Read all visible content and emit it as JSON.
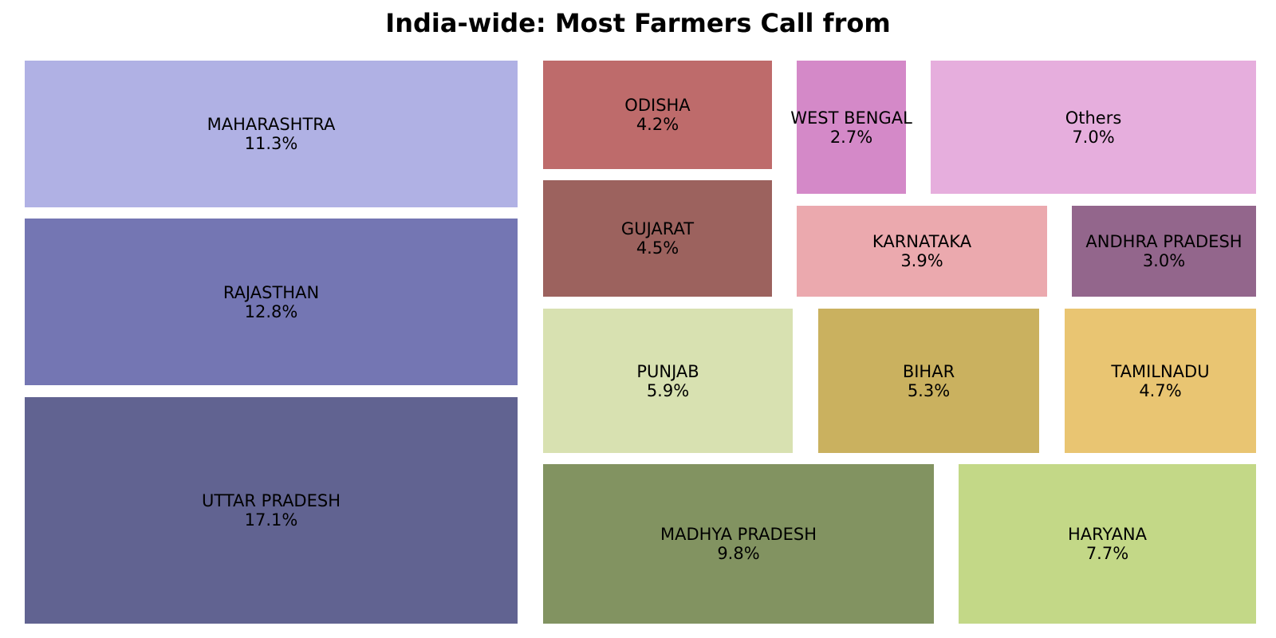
{
  "title": "India-wide: Most Farmers Call from",
  "chart_data": {
    "type": "treemap",
    "title": "India-wide: Most Farmers Call from",
    "tiles": [
      {
        "label": "MAHARASHTRA",
        "value": 11.3,
        "display": "11.3%",
        "color": "#b0b1e4"
      },
      {
        "label": "RAJASTHAN",
        "value": 12.8,
        "display": "12.8%",
        "color": "#7476b3"
      },
      {
        "label": "UTTAR PRADESH",
        "value": 17.1,
        "display": "17.1%",
        "color": "#616391"
      },
      {
        "label": "ODISHA",
        "value": 4.2,
        "display": "4.2%",
        "color": "#be6b6b"
      },
      {
        "label": "GUJARAT",
        "value": 4.5,
        "display": "4.5%",
        "color": "#9c625e"
      },
      {
        "label": "WEST BENGAL",
        "value": 2.7,
        "display": "2.7%",
        "color": "#d489c8"
      },
      {
        "label": "Others",
        "value": 7.0,
        "display": "7.0%",
        "color": "#e6aedd"
      },
      {
        "label": "KARNATAKA",
        "value": 3.9,
        "display": "3.9%",
        "color": "#eba9ae"
      },
      {
        "label": "ANDHRA PRADESH",
        "value": 3.0,
        "display": "3.0%",
        "color": "#93668c"
      },
      {
        "label": "PUNJAB",
        "value": 5.9,
        "display": "5.9%",
        "color": "#d8e1b1"
      },
      {
        "label": "BIHAR",
        "value": 5.3,
        "display": "5.3%",
        "color": "#cab15f"
      },
      {
        "label": "TAMILNADU",
        "value": 4.7,
        "display": "4.7%",
        "color": "#e9c572"
      },
      {
        "label": "MADHYA PRADESH",
        "value": 9.8,
        "display": "9.8%",
        "color": "#829361"
      },
      {
        "label": "HARYANA",
        "value": 7.7,
        "display": "7.7%",
        "color": "#c3d887"
      }
    ]
  }
}
